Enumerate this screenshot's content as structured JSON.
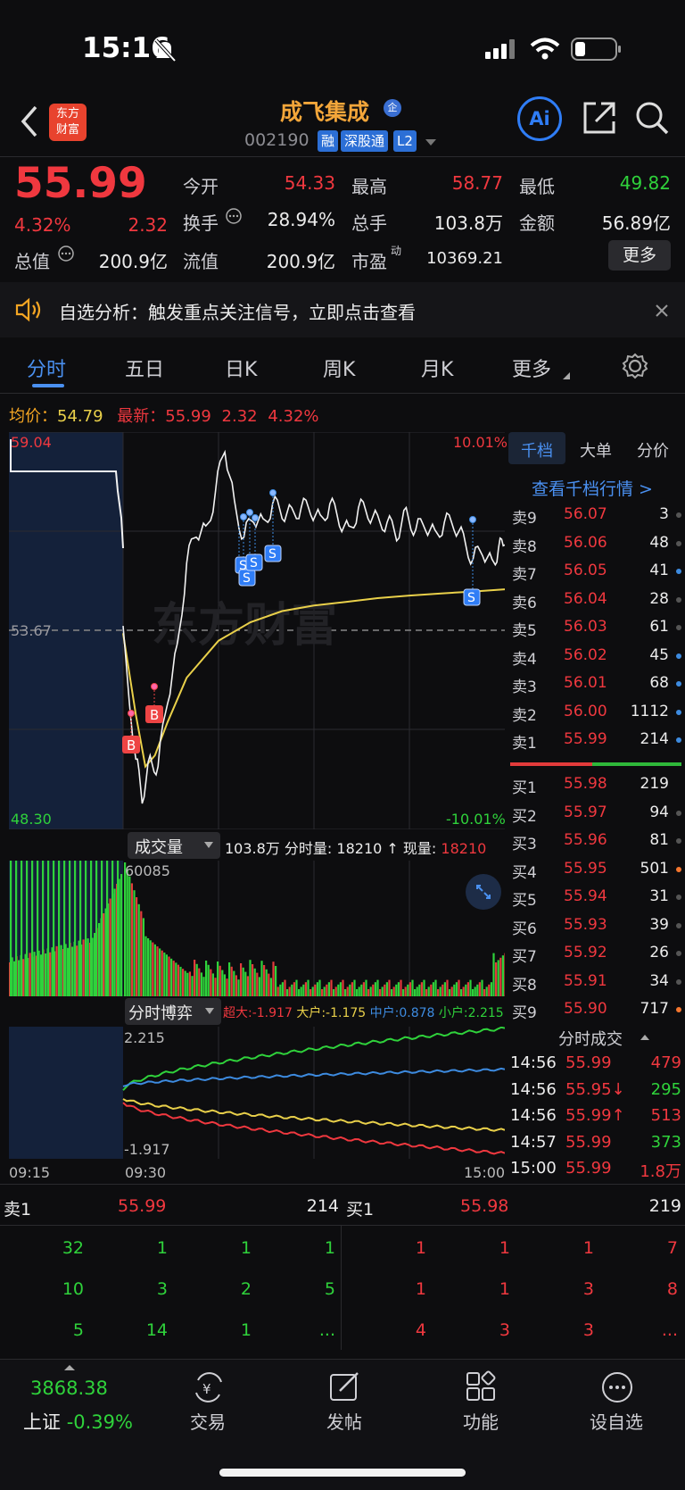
{
  "status": {
    "time": "15:16"
  },
  "header": {
    "app_logo": "东方\n财富",
    "app_logo_line1": "东方",
    "app_logo_line2": "财富",
    "stock_name": "成飞集成",
    "stock_badge": "企",
    "stock_code": "002190",
    "tags": [
      "融",
      "深股通",
      "L2"
    ],
    "ai_label": "Ai"
  },
  "quote": {
    "price": "55.99",
    "change_pct": "4.32%",
    "change": "2.32",
    "open_label": "今开",
    "open": "54.33",
    "high_label": "最高",
    "high": "58.77",
    "low_label": "最低",
    "low": "49.82",
    "turnover_label": "换手",
    "turnover": "28.94%",
    "volume_label": "总手",
    "volume": "103.8万",
    "amount_label": "金额",
    "amount": "56.89亿",
    "mcap_label": "总值",
    "mcap": "200.9亿",
    "float_label": "流值",
    "float": "200.9亿",
    "pe_label": "市盈",
    "pe_sup": "动",
    "pe": "10369.21",
    "more_button": "更多"
  },
  "banner": {
    "text": "自选分析：触发重点关注信号，立即点击查看"
  },
  "tabs": {
    "items": [
      "分时",
      "五日",
      "日K",
      "周K",
      "月K",
      "更多"
    ],
    "active": 0
  },
  "summary": {
    "avg_label": "均价：",
    "avg": "54.79",
    "latest_label": "最新：",
    "latest": "55.99",
    "latest_change": "2.32",
    "latest_pct": "4.32%"
  },
  "chart_data": [
    {
      "type": "line",
      "title": "分时",
      "y_top": "59.04",
      "y_mid": "53.67",
      "y_bottom": "48.30",
      "pct_top": "10.01%",
      "pct_bottom": "-10.01%",
      "ylim": [
        48.3,
        59.04
      ],
      "watermark": "东方财富",
      "series": [
        {
          "x": [
            0,
            8,
            12,
            17,
            22,
            28,
            34,
            40,
            46,
            52,
            58,
            64,
            70,
            76,
            82,
            88,
            94,
            100,
            106,
            112,
            118,
            124,
            130,
            136,
            142,
            148,
            154,
            160,
            166,
            172,
            178,
            184,
            190,
            196,
            202,
            208,
            214,
            220,
            226,
            232,
            236,
            240
          ],
          "y": [
            53.6,
            50.2,
            49.2,
            50.1,
            50.0,
            51.9,
            53.1,
            55.5,
            56.4,
            56.3,
            57.4,
            58.7,
            57.0,
            56.2,
            56.8,
            56.5,
            57.1,
            56.9,
            56.8,
            57.0,
            57.0,
            56.6,
            57.1,
            56.7,
            56.3,
            57.0,
            56.9,
            56.6,
            56.6,
            56.3,
            56.8,
            56.4,
            56.6,
            56.2,
            56.6,
            56.6,
            56.1,
            55.6,
            55.9,
            55.4,
            55.9,
            55.99
          ]
        },
        {
          "x": [
            0,
            8,
            14,
            20,
            28,
            40,
            60,
            80,
            100,
            120,
            140,
            160,
            180,
            200,
            220,
            240
          ],
          "y": [
            53.6,
            51.4,
            50.0,
            50.3,
            51.2,
            52.4,
            53.4,
            53.9,
            54.2,
            54.35,
            54.45,
            54.55,
            54.62,
            54.68,
            54.73,
            54.79
          ]
        }
      ],
      "markers": [
        "B",
        "B",
        "S",
        "S",
        "S",
        "S",
        "S"
      ]
    },
    {
      "type": "bar",
      "title": "成交量",
      "total_volume": "103.8万",
      "minute_volume_label": "分时量:",
      "minute_volume": "18210",
      "current_label": "现量:",
      "current": "18210",
      "ymax_label": "60085"
    },
    {
      "type": "line",
      "title": "分时博弈",
      "series": [
        {
          "name": "超大",
          "value": "-1.917",
          "color": "#f0383f"
        },
        {
          "name": "大户",
          "value": "-1.175",
          "color": "#e9d04a"
        },
        {
          "name": "中户",
          "value": "0.878",
          "color": "#3d8be0"
        },
        {
          "name": "小户",
          "value": "2.215",
          "color": "#2fd23b"
        }
      ],
      "y_top": "2.215",
      "y_bottom": "-1.917",
      "x_labels": [
        "09:15",
        "09:30",
        "15:00"
      ]
    }
  ],
  "orderbook": {
    "tabs": [
      "千档",
      "大单",
      "分价"
    ],
    "link": "查看千档行情 >",
    "asks": [
      {
        "label": "卖9",
        "price": "56.07",
        "vol": "3"
      },
      {
        "label": "卖8",
        "price": "56.06",
        "vol": "48"
      },
      {
        "label": "卖7",
        "price": "56.05",
        "vol": "41"
      },
      {
        "label": "卖6",
        "price": "56.04",
        "vol": "28"
      },
      {
        "label": "卖5",
        "price": "56.03",
        "vol": "61"
      },
      {
        "label": "卖4",
        "price": "56.02",
        "vol": "45"
      },
      {
        "label": "卖3",
        "price": "56.01",
        "vol": "68"
      },
      {
        "label": "卖2",
        "price": "56.00",
        "vol": "1112"
      },
      {
        "label": "卖1",
        "price": "55.99",
        "vol": "214"
      }
    ],
    "bids": [
      {
        "label": "买1",
        "price": "55.98",
        "vol": "219"
      },
      {
        "label": "买2",
        "price": "55.97",
        "vol": "94"
      },
      {
        "label": "买3",
        "price": "55.96",
        "vol": "81"
      },
      {
        "label": "买4",
        "price": "55.95",
        "vol": "501"
      },
      {
        "label": "买5",
        "price": "55.94",
        "vol": "31"
      },
      {
        "label": "买6",
        "price": "55.93",
        "vol": "39"
      },
      {
        "label": "买7",
        "price": "55.92",
        "vol": "26"
      },
      {
        "label": "买8",
        "price": "55.91",
        "vol": "34"
      },
      {
        "label": "买9",
        "price": "55.90",
        "vol": "717"
      }
    ]
  },
  "trades": {
    "title": "分时成交",
    "rows": [
      {
        "time": "14:56",
        "price": "55.99",
        "vol": "479"
      },
      {
        "time": "14:56",
        "price": "55.95↓",
        "vol": "295"
      },
      {
        "time": "14:56",
        "price": "55.99↑",
        "vol": "513"
      },
      {
        "time": "14:57",
        "price": "55.99",
        "vol": "373"
      },
      {
        "time": "15:00",
        "price": "55.99",
        "vol": "1.8万"
      }
    ]
  },
  "queue": {
    "sell": {
      "label": "卖1",
      "price": "55.99",
      "vol": "214",
      "rows": [
        [
          "32",
          "1",
          "1",
          "1"
        ],
        [
          "10",
          "3",
          "2",
          "5"
        ],
        [
          "5",
          "14",
          "1",
          "..."
        ]
      ]
    },
    "buy": {
      "label": "买1",
      "price": "55.98",
      "vol": "219",
      "rows": [
        [
          "1",
          "1",
          "1",
          "7"
        ],
        [
          "1",
          "1",
          "3",
          "8"
        ],
        [
          "4",
          "3",
          "3",
          "..."
        ]
      ]
    }
  },
  "bottom_nav": {
    "index_value": "3868.38",
    "index_name": "上证",
    "index_change": "-0.39%",
    "items": [
      "交易",
      "发帖",
      "功能",
      "设自选"
    ]
  }
}
